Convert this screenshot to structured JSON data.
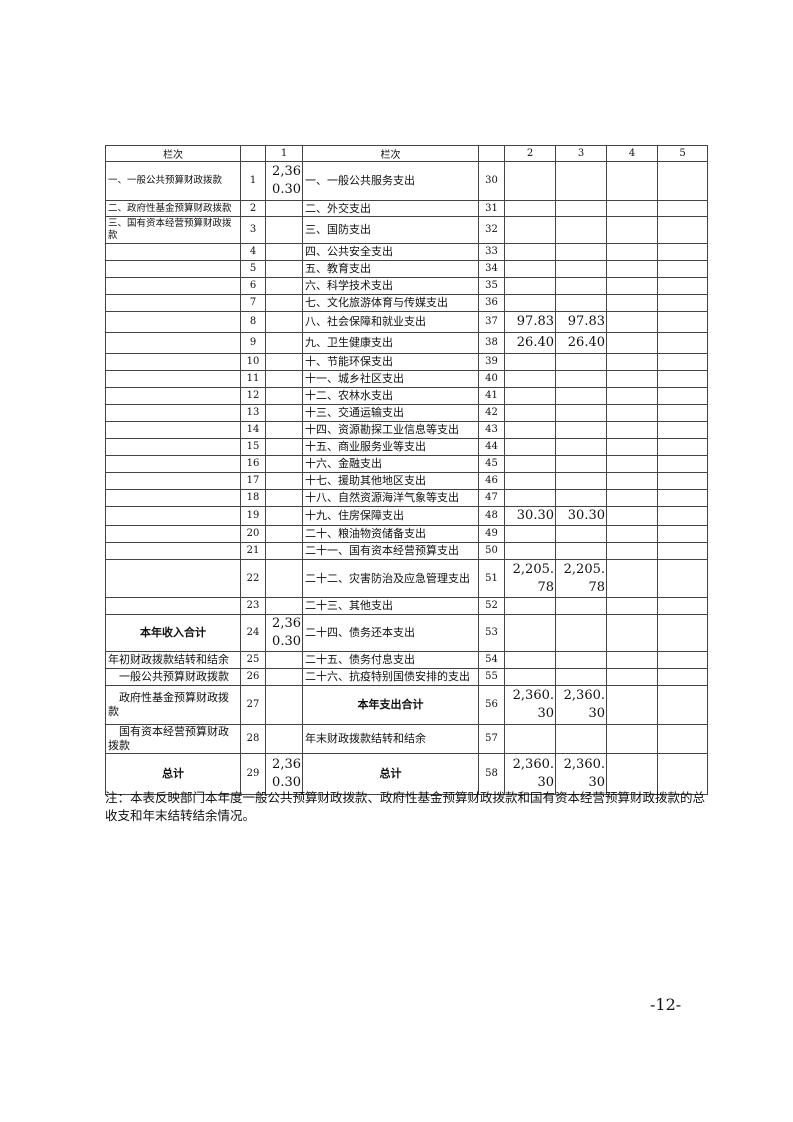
{
  "table": {
    "headers": [
      "栏次",
      "",
      "1",
      "栏次",
      "",
      "2",
      "3",
      "4",
      "5"
    ],
    "rows": [
      {
        "left": "一、一般公共预算财政拨款",
        "ln": "1",
        "c1": "2,360.30",
        "right": "一、一般公共服务支出",
        "rn": "30",
        "c2": "",
        "c3": "",
        "c4": "",
        "c5": ""
      },
      {
        "left": "二、政府性基金预算财政拨款",
        "ln": "2",
        "c1": "",
        "right": "二、外交支出",
        "rn": "31",
        "c2": "",
        "c3": "",
        "c4": "",
        "c5": ""
      },
      {
        "left": "三、国有资本经营预算财政拨款",
        "ln": "3",
        "c1": "",
        "right": "三、国防支出",
        "rn": "32",
        "c2": "",
        "c3": "",
        "c4": "",
        "c5": ""
      },
      {
        "left": "",
        "ln": "4",
        "c1": "",
        "right": "四、公共安全支出",
        "rn": "33",
        "c2": "",
        "c3": "",
        "c4": "",
        "c5": ""
      },
      {
        "left": "",
        "ln": "5",
        "c1": "",
        "right": "五、教育支出",
        "rn": "34",
        "c2": "",
        "c3": "",
        "c4": "",
        "c5": ""
      },
      {
        "left": "",
        "ln": "6",
        "c1": "",
        "right": "六、科学技术支出",
        "rn": "35",
        "c2": "",
        "c3": "",
        "c4": "",
        "c5": ""
      },
      {
        "left": "",
        "ln": "7",
        "c1": "",
        "right": "七、文化旅游体育与传媒支出",
        "rn": "36",
        "c2": "",
        "c3": "",
        "c4": "",
        "c5": ""
      },
      {
        "left": "",
        "ln": "8",
        "c1": "",
        "right": "八、社会保障和就业支出",
        "rn": "37",
        "c2": "97.83",
        "c3": "97.83",
        "c4": "",
        "c5": ""
      },
      {
        "left": "",
        "ln": "9",
        "c1": "",
        "right": "九、卫生健康支出",
        "rn": "38",
        "c2": "26.40",
        "c3": "26.40",
        "c4": "",
        "c5": ""
      },
      {
        "left": "",
        "ln": "10",
        "c1": "",
        "right": "十、节能环保支出",
        "rn": "39",
        "c2": "",
        "c3": "",
        "c4": "",
        "c5": ""
      },
      {
        "left": "",
        "ln": "11",
        "c1": "",
        "right": "十一、城乡社区支出",
        "rn": "40",
        "c2": "",
        "c3": "",
        "c4": "",
        "c5": ""
      },
      {
        "left": "",
        "ln": "12",
        "c1": "",
        "right": "十二、农林水支出",
        "rn": "41",
        "c2": "",
        "c3": "",
        "c4": "",
        "c5": ""
      },
      {
        "left": "",
        "ln": "13",
        "c1": "",
        "right": "十三、交通运输支出",
        "rn": "42",
        "c2": "",
        "c3": "",
        "c4": "",
        "c5": ""
      },
      {
        "left": "",
        "ln": "14",
        "c1": "",
        "right": "十四、资源勘探工业信息等支出",
        "rn": "43",
        "c2": "",
        "c3": "",
        "c4": "",
        "c5": ""
      },
      {
        "left": "",
        "ln": "15",
        "c1": "",
        "right": "十五、商业服务业等支出",
        "rn": "44",
        "c2": "",
        "c3": "",
        "c4": "",
        "c5": ""
      },
      {
        "left": "",
        "ln": "16",
        "c1": "",
        "right": "十六、金融支出",
        "rn": "45",
        "c2": "",
        "c3": "",
        "c4": "",
        "c5": ""
      },
      {
        "left": "",
        "ln": "17",
        "c1": "",
        "right": "十七、援助其他地区支出",
        "rn": "46",
        "c2": "",
        "c3": "",
        "c4": "",
        "c5": ""
      },
      {
        "left": "",
        "ln": "18",
        "c1": "",
        "right": "十八、自然资源海洋气象等支出",
        "rn": "47",
        "c2": "",
        "c3": "",
        "c4": "",
        "c5": ""
      },
      {
        "left": "",
        "ln": "19",
        "c1": "",
        "right": "十九、住房保障支出",
        "rn": "48",
        "c2": "30.30",
        "c3": "30.30",
        "c4": "",
        "c5": ""
      },
      {
        "left": "",
        "ln": "20",
        "c1": "",
        "right": "二十、粮油物资储备支出",
        "rn": "49",
        "c2": "",
        "c3": "",
        "c4": "",
        "c5": ""
      },
      {
        "left": "",
        "ln": "21",
        "c1": "",
        "right": "二十一、国有资本经营预算支出",
        "rn": "50",
        "c2": "",
        "c3": "",
        "c4": "",
        "c5": ""
      },
      {
        "left": "",
        "ln": "22",
        "c1": "",
        "right": "二十二、灾害防治及应急管理支出",
        "rn": "51",
        "c2": "2,205.78",
        "c3": "2,205.78",
        "c4": "",
        "c5": ""
      },
      {
        "left": "",
        "ln": "23",
        "c1": "",
        "right": "二十三、其他支出",
        "rn": "52",
        "c2": "",
        "c3": "",
        "c4": "",
        "c5": ""
      },
      {
        "left": "本年收入合计",
        "ln": "24",
        "c1": "2,360.30",
        "right": "二十四、债务还本支出",
        "rn": "53",
        "c2": "",
        "c3": "",
        "c4": "",
        "c5": ""
      },
      {
        "left": "年初财政拨款结转和结余",
        "ln": "25",
        "c1": "",
        "right": "二十五、债务付息支出",
        "rn": "54",
        "c2": "",
        "c3": "",
        "c4": "",
        "c5": ""
      },
      {
        "left": "　一般公共预算财政拨款",
        "ln": "26",
        "c1": "",
        "right": "二十六、抗疫特别国债安排的支出",
        "rn": "55",
        "c2": "",
        "c3": "",
        "c4": "",
        "c5": ""
      },
      {
        "left": "　政府性基金预算财政拨款",
        "ln": "27",
        "c1": "",
        "right": "本年支出合计",
        "rn": "56",
        "c2": "2,360.30",
        "c3": "2,360.30",
        "c4": "",
        "c5": ""
      },
      {
        "left": "　国有资本经营预算财政拨款",
        "ln": "28",
        "c1": "",
        "right": "年末财政拨款结转和结余",
        "rn": "57",
        "c2": "",
        "c3": "",
        "c4": "",
        "c5": ""
      },
      {
        "left": "总计",
        "ln": "29",
        "c1": "2,360.30",
        "right": "总计",
        "rn": "58",
        "c2": "2,360.30",
        "c3": "2,360.30",
        "c4": "",
        "c5": ""
      }
    ]
  },
  "note": "注：本表反映部门本年度一般公共预算财政拨款、政府性基金预算财政拨款和国有资本经营预算财政拨款的总收支和年末结转结余情况。",
  "page_number": "-12-"
}
